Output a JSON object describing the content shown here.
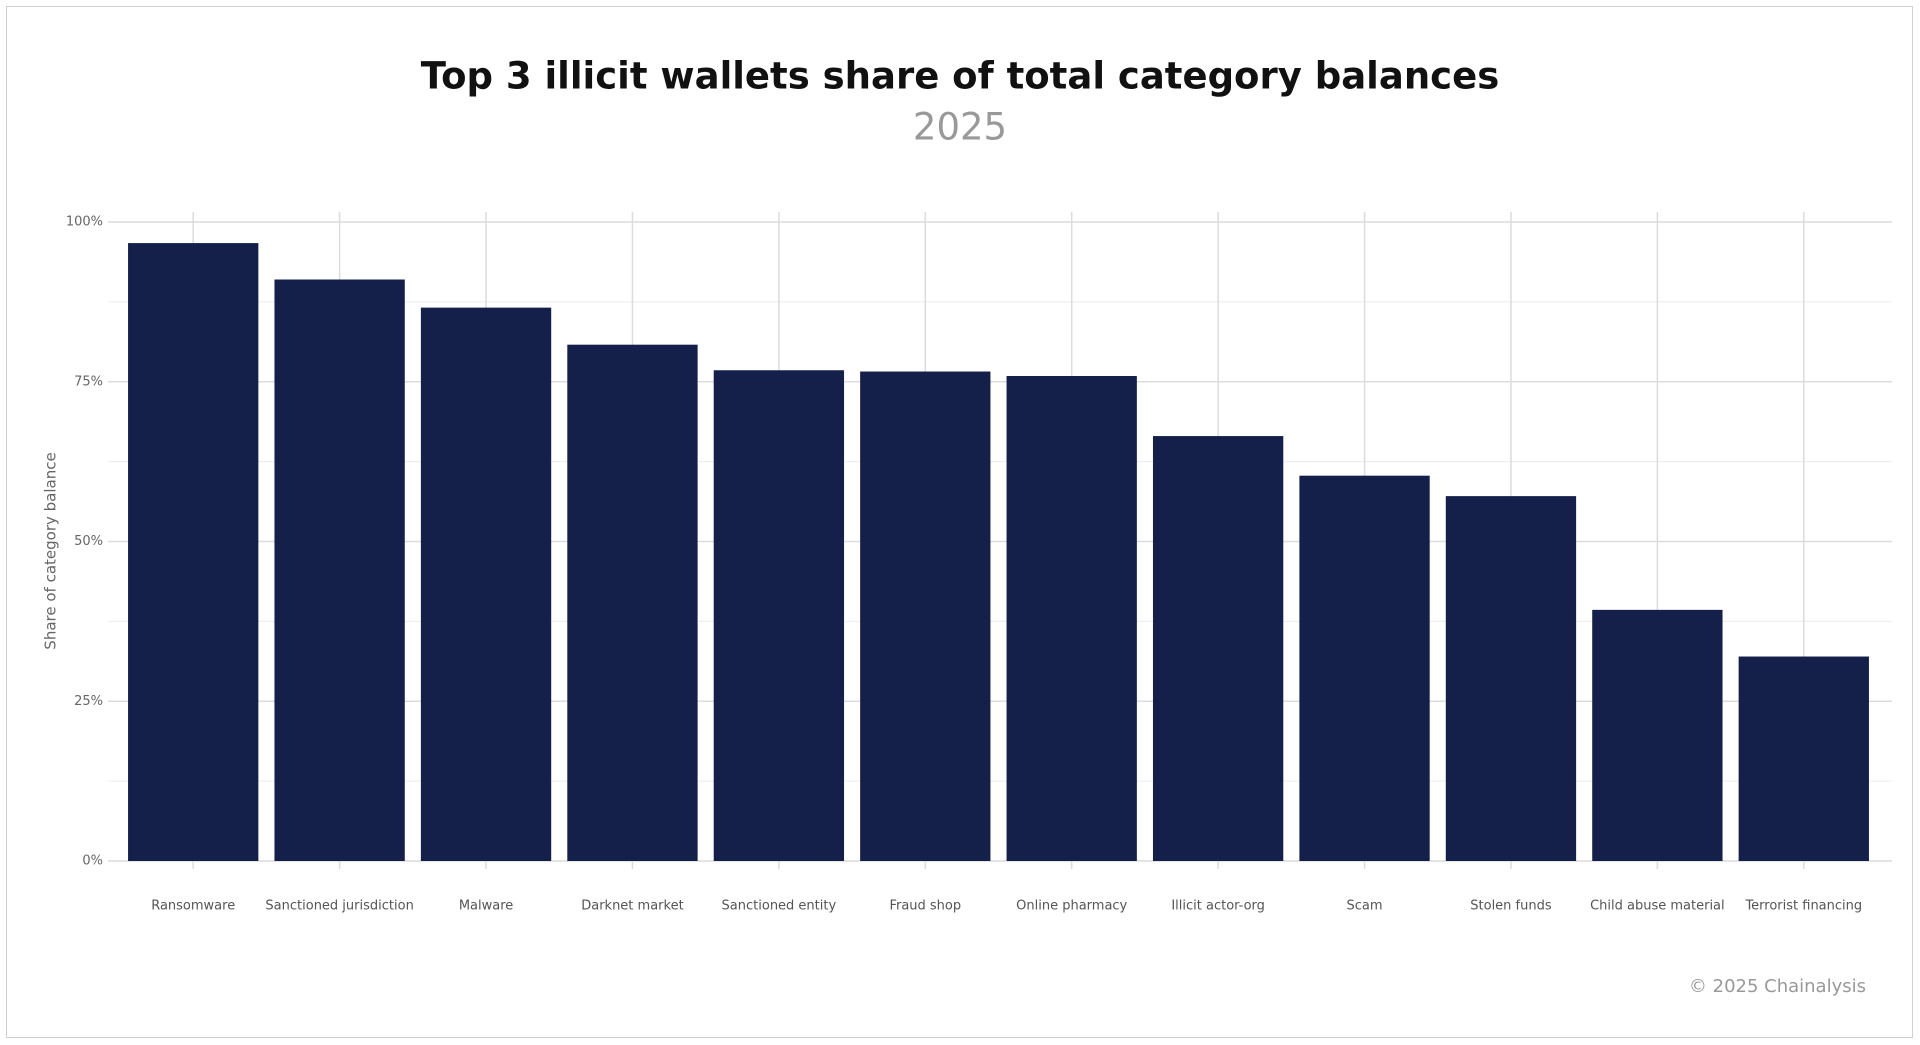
{
  "chart_data": {
    "type": "bar",
    "title": "Top 3 illicit wallets share of total category balances",
    "subtitle": "2025",
    "y_label": "Share of category balance",
    "source": "© 2025 Chainalysis",
    "categories": [
      "Ransomware",
      "Sanctioned jurisdiction",
      "Malware",
      "Darknet market",
      "Sanctioned entity",
      "Fraud shop",
      "Online pharmacy",
      "Illicit actor-org",
      "Scam",
      "Stolen funds",
      "Child abuse material",
      "Terrorist financing"
    ],
    "values": [
      96.7,
      91.0,
      86.6,
      80.8,
      76.8,
      76.6,
      75.9,
      66.5,
      60.3,
      57.1,
      39.3,
      32.0
    ],
    "color": "#14204a",
    "ylim": [
      0,
      100
    ],
    "yticks": [
      {
        "value": 0,
        "label": "0%"
      },
      {
        "value": 25,
        "label": "25%"
      },
      {
        "value": 50,
        "label": "50%"
      },
      {
        "value": 75,
        "label": "75%"
      },
      {
        "value": 100,
        "label": "100%"
      }
    ],
    "grid": true
  }
}
